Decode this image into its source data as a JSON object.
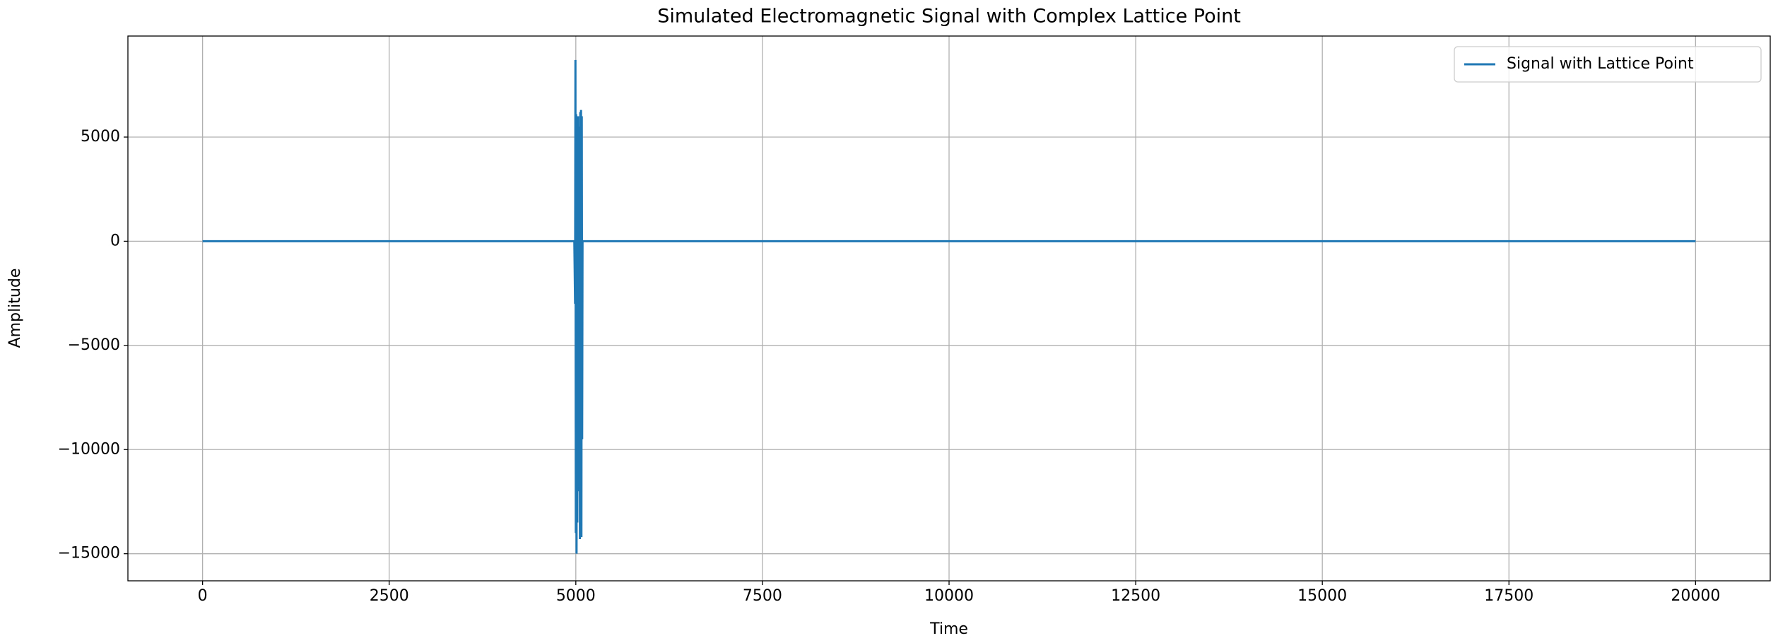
{
  "chart_data": {
    "type": "line",
    "title": "Simulated Electromagnetic Signal with Complex Lattice Point",
    "xlabel": "Time",
    "ylabel": "Amplitude",
    "x": [
      0,
      4980,
      4990,
      4995,
      5000,
      5005,
      5010,
      5015,
      5020,
      5030,
      5040,
      5050,
      5055,
      5060,
      5065,
      5070,
      5075,
      5080,
      5085,
      5090,
      20000
    ],
    "series": [
      {
        "name": "Signal with Lattice Point",
        "color": "#1f77b4",
        "values": [
          0,
          0,
          -3000,
          8700,
          -14000,
          6100,
          -15000,
          5800,
          -13500,
          6000,
          -12000,
          5500,
          -14300,
          6200,
          -9500,
          6300,
          -14200,
          6000,
          -9500,
          0,
          0
        ]
      }
    ],
    "xlim": [
      -1000,
      21000
    ],
    "xticks": [
      0,
      2500,
      5000,
      7500,
      10000,
      12500,
      15000,
      17500,
      20000
    ],
    "ylim": [
      -16300,
      9850
    ],
    "yticks": [
      {
        "value": -15000,
        "label": "−15000"
      },
      {
        "value": -10000,
        "label": "−10000"
      },
      {
        "value": -5000,
        "label": "−5000"
      },
      0,
      5000
    ],
    "grid": true,
    "legend": "upper right"
  }
}
